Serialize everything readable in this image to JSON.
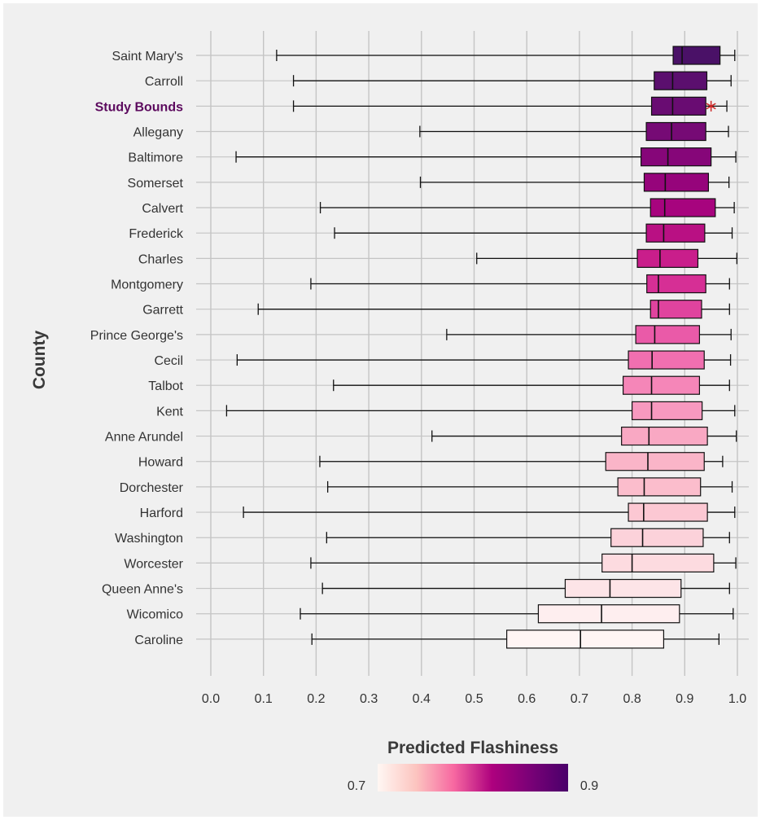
{
  "chart_data": {
    "type": "boxplot",
    "orientation": "horizontal",
    "xlim": [
      0.0,
      1.0
    ],
    "x_ticks": [
      "0.0",
      "0.1",
      "0.2",
      "0.3",
      "0.4",
      "0.5",
      "0.6",
      "0.7",
      "0.8",
      "0.9",
      "1.0"
    ],
    "ylabel": "County",
    "highlight": "Study Bounds",
    "marker": {
      "category": "Study Bounds",
      "value": 0.95,
      "symbol": "*",
      "color": "#cc2222"
    },
    "series": [
      {
        "name": "Saint Mary's",
        "min": 0.125,
        "q1": 0.878,
        "median": 0.895,
        "q3": 0.967,
        "max": 0.995,
        "color": "#4a1167"
      },
      {
        "name": "Carroll",
        "min": 0.157,
        "q1": 0.842,
        "median": 0.877,
        "q3": 0.942,
        "max": 0.988,
        "color": "#5b0f6e"
      },
      {
        "name": "Study Bounds",
        "min": 0.157,
        "q1": 0.837,
        "median": 0.877,
        "q3": 0.94,
        "max": 0.98,
        "color": "#690c72"
      },
      {
        "name": "Allegany",
        "min": 0.397,
        "q1": 0.827,
        "median": 0.875,
        "q3": 0.94,
        "max": 0.983,
        "color": "#760a75"
      },
      {
        "name": "Baltimore",
        "min": 0.048,
        "q1": 0.817,
        "median": 0.868,
        "q3": 0.95,
        "max": 0.997,
        "color": "#860679"
      },
      {
        "name": "Somerset",
        "min": 0.398,
        "q1": 0.823,
        "median": 0.863,
        "q3": 0.945,
        "max": 0.984,
        "color": "#96047b"
      },
      {
        "name": "Calvert",
        "min": 0.208,
        "q1": 0.835,
        "median": 0.862,
        "q3": 0.958,
        "max": 0.994,
        "color": "#a7047e"
      },
      {
        "name": "Frederick",
        "min": 0.235,
        "q1": 0.827,
        "median": 0.86,
        "q3": 0.938,
        "max": 0.99,
        "color": "#b91083"
      },
      {
        "name": "Charles",
        "min": 0.505,
        "q1": 0.81,
        "median": 0.853,
        "q3": 0.925,
        "max": 0.999,
        "color": "#c91e8b"
      },
      {
        "name": "Montgomery",
        "min": 0.19,
        "q1": 0.828,
        "median": 0.85,
        "q3": 0.94,
        "max": 0.985,
        "color": "#d62f95"
      },
      {
        "name": "Garrett",
        "min": 0.09,
        "q1": 0.835,
        "median": 0.85,
        "q3": 0.932,
        "max": 0.985,
        "color": "#e0439e"
      },
      {
        "name": "Prince George's",
        "min": 0.448,
        "q1": 0.807,
        "median": 0.843,
        "q3": 0.928,
        "max": 0.988,
        "color": "#ea5aa8"
      },
      {
        "name": "Cecil",
        "min": 0.05,
        "q1": 0.793,
        "median": 0.838,
        "q3": 0.937,
        "max": 0.987,
        "color": "#f16fb0"
      },
      {
        "name": "Talbot",
        "min": 0.233,
        "q1": 0.783,
        "median": 0.837,
        "q3": 0.928,
        "max": 0.985,
        "color": "#f586b8"
      },
      {
        "name": "Kent",
        "min": 0.03,
        "q1": 0.8,
        "median": 0.837,
        "q3": 0.933,
        "max": 0.995,
        "color": "#f799bf"
      },
      {
        "name": "Anne Arundel",
        "min": 0.42,
        "q1": 0.78,
        "median": 0.832,
        "q3": 0.943,
        "max": 0.998,
        "color": "#f9a8c3"
      },
      {
        "name": "Howard",
        "min": 0.207,
        "q1": 0.75,
        "median": 0.83,
        "q3": 0.937,
        "max": 0.972,
        "color": "#fab5c8"
      },
      {
        "name": "Dorchester",
        "min": 0.222,
        "q1": 0.773,
        "median": 0.823,
        "q3": 0.93,
        "max": 0.99,
        "color": "#fbbdcc"
      },
      {
        "name": "Harford",
        "min": 0.062,
        "q1": 0.793,
        "median": 0.822,
        "q3": 0.943,
        "max": 0.995,
        "color": "#fcc8d3"
      },
      {
        "name": "Washington",
        "min": 0.22,
        "q1": 0.76,
        "median": 0.82,
        "q3": 0.935,
        "max": 0.985,
        "color": "#fcd2da"
      },
      {
        "name": "Worcester",
        "min": 0.19,
        "q1": 0.743,
        "median": 0.8,
        "q3": 0.955,
        "max": 0.997,
        "color": "#fddbe0"
      },
      {
        "name": "Queen Anne's",
        "min": 0.212,
        "q1": 0.673,
        "median": 0.758,
        "q3": 0.893,
        "max": 0.985,
        "color": "#fde4e7"
      },
      {
        "name": "Wicomico",
        "min": 0.17,
        "q1": 0.622,
        "median": 0.742,
        "q3": 0.89,
        "max": 0.992,
        "color": "#feeeef"
      },
      {
        "name": "Caroline",
        "min": 0.192,
        "q1": 0.562,
        "median": 0.702,
        "q3": 0.86,
        "max": 0.965,
        "color": "#fff5f4"
      }
    ],
    "legend": {
      "title": "Predicted Flashiness",
      "min_label": "0.7",
      "max_label": "0.9",
      "stops": [
        "#fff7f3",
        "#fcc5c0",
        "#f768a1",
        "#ae017e",
        "#7a0177",
        "#49006a"
      ]
    }
  }
}
